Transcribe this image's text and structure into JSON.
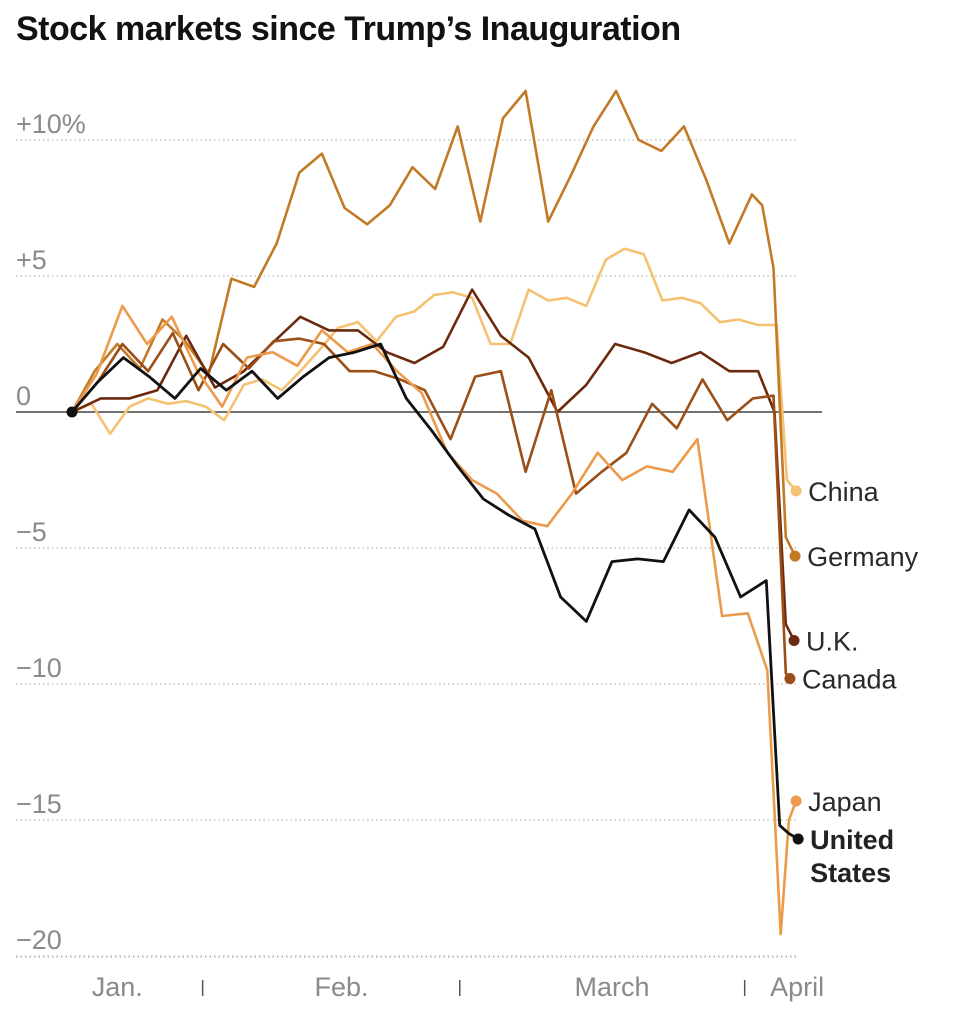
{
  "chart_data": {
    "type": "line",
    "title": "Stock markets since Trump’s Inauguration",
    "xlabel": "",
    "ylabel": "",
    "ylim": [
      -20,
      12
    ],
    "xlim": [
      0,
      70
    ],
    "y_ticks": [
      {
        "value": 10,
        "label": "+10%"
      },
      {
        "value": 5,
        "label": "+5"
      },
      {
        "value": 0,
        "label": "0"
      },
      {
        "value": -5,
        "label": "−5"
      },
      {
        "value": -10,
        "label": "−10"
      },
      {
        "value": -15,
        "label": "−15"
      },
      {
        "value": -20,
        "label": "−20"
      }
    ],
    "x_ticks": [
      {
        "value": 4.4,
        "label": "Jan."
      },
      {
        "value": 26.2,
        "label": "Feb."
      },
      {
        "value": 52.5,
        "label": "March"
      },
      {
        "value": 70.5,
        "label": "April"
      }
    ],
    "x_separators": [
      12.7,
      37.7,
      65.4
    ],
    "series": [
      {
        "name": "China",
        "label_lines": [
          "China"
        ],
        "color": "#f5c173",
        "bold": false,
        "x": [
          0,
          1.9,
          3.7,
          5.6,
          7.4,
          9.3,
          11.1,
          13.0,
          14.8,
          16.7,
          18.5,
          20.4,
          22.2,
          24.1,
          25.9,
          27.8,
          29.6,
          31.5,
          33.3,
          35.2,
          37.0,
          38.9,
          40.7,
          42.6,
          44.4,
          46.3,
          48.1,
          50.0,
          51.9,
          53.7,
          55.6,
          57.4,
          59.3,
          61.1,
          63.0,
          64.8,
          66.7,
          68.5,
          69.5,
          70.4
        ],
        "values": [
          0,
          0.3,
          -0.8,
          0.2,
          0.5,
          0.3,
          0.4,
          0.2,
          -0.3,
          1.0,
          1.2,
          0.8,
          1.5,
          2.3,
          3.1,
          3.3,
          2.6,
          3.5,
          3.7,
          4.3,
          4.4,
          4.2,
          2.5,
          2.5,
          4.5,
          4.1,
          4.2,
          3.9,
          5.6,
          6.0,
          5.8,
          4.1,
          4.2,
          4.0,
          3.3,
          3.4,
          3.2,
          3.2,
          -2.5,
          -2.9
        ]
      },
      {
        "name": "Germany",
        "label_lines": [
          "Germany"
        ],
        "color": "#c27a26",
        "bold": false,
        "x": [
          0,
          2.2,
          4.4,
          6.6,
          8.8,
          11,
          13.3,
          15.5,
          17.7,
          19.9,
          22.1,
          24.3,
          26.5,
          28.7,
          30.9,
          33.1,
          35.3,
          37.5,
          39.7,
          41.9,
          44.1,
          46.3,
          48.5,
          50.7,
          52.9,
          55.1,
          57.3,
          59.5,
          61.7,
          63.9,
          66.1,
          67.1,
          68.2,
          69.4,
          70.3
        ],
        "values": [
          0,
          1.5,
          2.5,
          1.6,
          3.4,
          2.6,
          1.4,
          4.9,
          4.6,
          6.2,
          8.8,
          9.5,
          7.5,
          6.9,
          7.6,
          9.0,
          8.2,
          10.5,
          7.0,
          10.8,
          11.8,
          7.0,
          8.7,
          10.5,
          11.8,
          10.0,
          9.6,
          10.5,
          8.5,
          6.2,
          8.0,
          7.6,
          5.3,
          -4.6,
          -5.3
        ]
      },
      {
        "name": "U.K.",
        "label_lines": [
          "U.K."
        ],
        "color": "#6b2a0e",
        "bold": false,
        "x": [
          0,
          2.8,
          5.6,
          8.3,
          11.1,
          13.9,
          16.7,
          19.4,
          22.2,
          25.0,
          27.8,
          30.6,
          33.3,
          36.1,
          38.9,
          41.7,
          44.4,
          47.2,
          50.0,
          52.8,
          55.6,
          58.3,
          61.1,
          63.9,
          66.7,
          68.3,
          69.4,
          70.2
        ],
        "values": [
          0,
          0.5,
          0.5,
          0.8,
          2.8,
          0.9,
          1.5,
          2.5,
          3.5,
          3.0,
          3.0,
          2.2,
          1.8,
          2.4,
          4.5,
          2.8,
          2.0,
          0,
          1.0,
          2.5,
          2.2,
          1.8,
          2.2,
          1.5,
          1.5,
          0,
          -7.8,
          -8.4
        ]
      },
      {
        "name": "Canada",
        "label_lines": [
          "Canada"
        ],
        "color": "#9b4f16",
        "bold": false,
        "x": [
          0,
          2.5,
          4.9,
          7.4,
          9.8,
          12.3,
          14.7,
          17.2,
          19.6,
          22.1,
          24.5,
          27.0,
          29.4,
          31.9,
          34.3,
          36.8,
          39.2,
          41.7,
          44.1,
          46.6,
          49.0,
          51.5,
          53.9,
          56.4,
          58.8,
          61.3,
          63.7,
          66.2,
          68.2,
          69.4,
          69.8
        ],
        "values": [
          0,
          1.1,
          2.5,
          1.5,
          2.9,
          0.8,
          2.5,
          1.6,
          2.6,
          2.7,
          2.5,
          1.5,
          1.5,
          1.2,
          0.8,
          -1.0,
          1.3,
          1.5,
          -2.2,
          0.8,
          -3.0,
          -2.2,
          -1.5,
          0.3,
          -0.6,
          1.2,
          -0.3,
          0.5,
          0.6,
          -9.6,
          -9.8
        ]
      },
      {
        "name": "Japan",
        "label_lines": [
          "Japan"
        ],
        "color": "#ec9a4c",
        "bold": false,
        "x": [
          0,
          2.4,
          4.9,
          7.3,
          9.7,
          12.2,
          14.6,
          17.0,
          19.5,
          21.9,
          24.3,
          26.8,
          29.2,
          31.6,
          34.0,
          36.5,
          38.9,
          41.3,
          43.8,
          46.2,
          48.6,
          51.1,
          53.5,
          55.9,
          58.4,
          60.8,
          63.2,
          65.7,
          67.6,
          68.9,
          69.7,
          70.4
        ],
        "values": [
          0,
          1.4,
          3.9,
          2.5,
          3.5,
          1.5,
          0.2,
          2.0,
          2.2,
          1.7,
          3.0,
          2.2,
          2.5,
          1.5,
          0.7,
          -1.5,
          -2.5,
          -3.0,
          -4.0,
          -4.2,
          -3.0,
          -1.5,
          -2.5,
          -2.0,
          -2.2,
          -1.0,
          -7.5,
          -7.4,
          -9.5,
          -19.2,
          -15.0,
          -14.3
        ]
      },
      {
        "name": "United States",
        "label_lines": [
          "United",
          "States"
        ],
        "color": "#111111",
        "bold": true,
        "x": [
          0,
          2.5,
          5.0,
          7.5,
          10.0,
          12.5,
          15.0,
          17.5,
          20.0,
          22.5,
          25.0,
          27.5,
          30.0,
          32.5,
          35.0,
          37.5,
          40.0,
          42.5,
          45.0,
          47.5,
          50.0,
          52.5,
          55.0,
          57.5,
          60.0,
          62.5,
          65.0,
          67.5,
          68.8,
          69.7,
          70.6
        ],
        "values": [
          0,
          1.1,
          2.0,
          1.3,
          0.5,
          1.6,
          0.8,
          1.5,
          0.5,
          1.3,
          2.0,
          2.2,
          2.5,
          0.5,
          -0.7,
          -2.0,
          -3.2,
          -3.8,
          -4.3,
          -6.8,
          -7.7,
          -5.5,
          -5.4,
          -5.5,
          -3.6,
          -4.6,
          -6.8,
          -6.2,
          -15.2,
          -15.5,
          -15.7
        ]
      }
    ]
  }
}
